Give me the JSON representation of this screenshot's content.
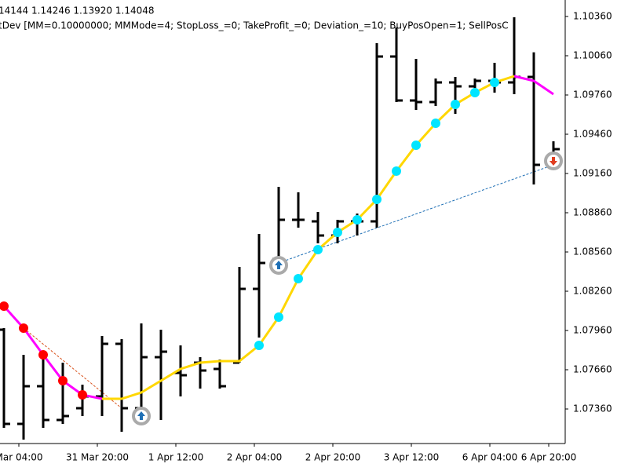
{
  "chart_data": {
    "type": "ohlc",
    "title": "14144 1.14246 1.13920 1.14048",
    "subtitle": "tDev [MM=0.10000000; MMMode=4; StopLoss_=0; TakeProfit_=0; Deviation_=10; BuyPosOpen=1; SellPosC",
    "categories": [
      null,
      "Mar 04:00",
      null,
      null,
      null,
      "31 Mar 20:00",
      null,
      null,
      null,
      "1 Apr 12:00",
      null,
      null,
      null,
      "2 Apr 04:00",
      null,
      null,
      null,
      "2 Apr 20:00",
      null,
      null,
      null,
      "3 Apr 12:00",
      null,
      null,
      null,
      "6 Apr 04:00",
      null,
      null,
      "6 Apr 20:00"
    ],
    "bar_color": "#000000",
    "open": [
      1.07966,
      1.07246,
      1.07534,
      1.07276,
      1.07366,
      1.07456,
      1.07858,
      1.07366,
      1.07756,
      1.07636,
      1.07714,
      1.07666,
      1.07714,
      1.08278,
      1.08506,
      1.08806,
      1.08794,
      1.08686,
      1.08794,
      1.08794,
      1.10054,
      1.09718,
      1.09706,
      1.09856,
      1.09826,
      1.09868,
      1.09856,
      1.09898,
      1.09226
    ],
    "high": [
      1.07978,
      1.07774,
      1.07786,
      1.07714,
      1.07546,
      1.07918,
      1.07894,
      1.08014,
      1.07966,
      1.07846,
      1.07756,
      1.07738,
      1.08446,
      1.08698,
      1.09058,
      1.09016,
      1.08866,
      1.08806,
      1.08854,
      1.10156,
      1.10276,
      1.10036,
      1.09886,
      1.09898,
      1.09886,
      1.10006,
      1.10354,
      1.10086,
      1.09406
    ],
    "low": [
      1.07216,
      1.07126,
      1.07216,
      1.07246,
      1.07306,
      1.07306,
      1.07186,
      1.07246,
      1.07276,
      1.07456,
      1.07516,
      1.07516,
      1.07714,
      1.07906,
      1.08506,
      1.08746,
      1.08626,
      1.08626,
      1.08686,
      1.08746,
      1.09706,
      1.09646,
      1.09676,
      1.09616,
      1.09766,
      1.09778,
      1.09766,
      1.09076,
      1.09196
    ],
    "close": [
      1.07246,
      1.07534,
      1.07276,
      1.07306,
      1.07456,
      1.07858,
      1.07366,
      1.07756,
      1.07798,
      1.07618,
      1.07654,
      1.07534,
      1.08278,
      1.08476,
      1.08806,
      1.08806,
      1.08686,
      1.08794,
      1.08794,
      1.10054,
      1.09718,
      1.09706,
      1.09856,
      1.09826,
      1.09868,
      1.09856,
      1.09898,
      1.09226,
      1.09346
    ],
    "lines": [
      {
        "color": "#ff00ff",
        "values": [
          1.08146,
          1.07978,
          1.07774,
          1.07576,
          1.07468,
          1.07438,
          null,
          null,
          null,
          null,
          null,
          null,
          null,
          null,
          null,
          null,
          null,
          null,
          null,
          null,
          null,
          null,
          null,
          null,
          null,
          null,
          1.09904,
          1.09868,
          1.09766
        ]
      },
      {
        "color": "#ffd700",
        "values": [
          null,
          null,
          null,
          null,
          null,
          1.07438,
          1.07438,
          1.07486,
          1.07576,
          1.07666,
          1.07714,
          1.07726,
          1.07726,
          1.07846,
          1.08062,
          1.08356,
          1.08578,
          1.0871,
          1.08806,
          1.08962,
          1.09178,
          1.09376,
          1.09544,
          1.09688,
          1.09778,
          1.09856,
          1.09904,
          null,
          null
        ]
      }
    ],
    "dots": [
      {
        "color": "#ff0000",
        "values": [
          1.08146,
          1.07978,
          1.07774,
          1.07576,
          1.07468,
          null,
          null,
          null,
          null,
          null,
          null,
          null,
          null,
          null,
          null,
          null,
          null,
          null,
          null,
          null,
          null,
          null,
          null,
          null,
          null,
          null,
          null,
          null,
          null
        ]
      },
      {
        "color": "#00e5ff",
        "values": [
          null,
          null,
          null,
          null,
          null,
          null,
          null,
          null,
          null,
          null,
          null,
          null,
          null,
          1.07846,
          1.08062,
          1.08356,
          1.08578,
          1.0871,
          1.08806,
          1.08962,
          1.09178,
          1.09376,
          1.09544,
          1.09688,
          1.09778,
          1.09856,
          null,
          null,
          null
        ]
      }
    ],
    "dashed": [
      {
        "color": "#d9531e",
        "values": [
          null,
          1.07978,
          1.07856,
          1.07733,
          1.07611,
          1.07488,
          1.07366,
          null,
          null,
          null,
          null,
          null,
          null,
          null,
          null,
          null,
          null,
          null,
          null,
          null,
          null,
          null,
          null,
          null,
          null,
          null,
          null,
          null,
          null
        ]
      },
      {
        "color": "#1e6fb5",
        "values": [
          null,
          null,
          null,
          null,
          null,
          null,
          null,
          null,
          null,
          null,
          null,
          null,
          null,
          null,
          1.08476,
          1.0853,
          1.08583,
          1.08637,
          1.0869,
          1.08744,
          1.08797,
          1.08851,
          1.08905,
          1.08958,
          1.09012,
          1.09065,
          1.09119,
          1.09172,
          1.09226
        ]
      }
    ],
    "buy_signals": {
      "color": "#1e6fb5",
      "values": [
        null,
        null,
        null,
        null,
        null,
        null,
        null,
        1.07306,
        null,
        null,
        null,
        null,
        null,
        null,
        1.08458,
        null,
        null,
        null,
        null,
        null,
        null,
        null,
        null,
        null,
        null,
        null,
        null,
        null,
        null
      ]
    },
    "sell_signals": {
      "color": "#e03c1e",
      "values": [
        null,
        null,
        null,
        null,
        null,
        null,
        null,
        null,
        null,
        null,
        null,
        null,
        null,
        null,
        null,
        null,
        null,
        null,
        null,
        null,
        null,
        null,
        null,
        null,
        null,
        null,
        null,
        null,
        1.09256
      ]
    },
    "ylim": [
      1.07096,
      1.10486
    ],
    "yticks": [
      {
        "value": 1.1036,
        "label": "1.10360"
      },
      {
        "value": 1.1006,
        "label": "1.10060"
      },
      {
        "value": 1.0976,
        "label": "1.09760"
      },
      {
        "value": 1.0946,
        "label": "1.09460"
      },
      {
        "value": 1.0916,
        "label": "1.09160"
      },
      {
        "value": 1.0886,
        "label": "1.08860"
      },
      {
        "value": 1.0856,
        "label": "1.08560"
      },
      {
        "value": 1.0826,
        "label": "1.08260"
      },
      {
        "value": 1.0796,
        "label": "1.07960"
      },
      {
        "value": 1.0766,
        "label": "1.07660"
      },
      {
        "value": 1.0736,
        "label": "1.07360"
      }
    ]
  }
}
